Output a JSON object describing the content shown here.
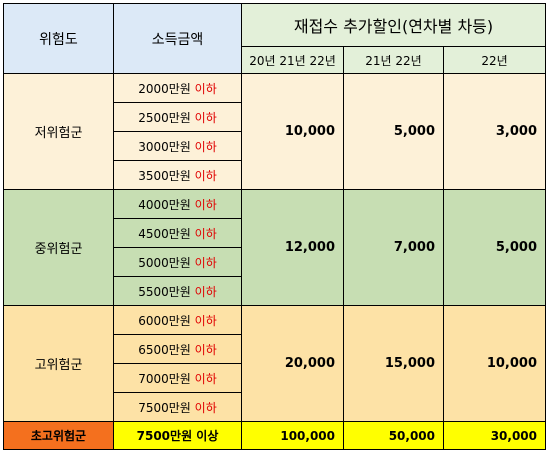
{
  "header": {
    "risk": "위험도",
    "income": "소득금액",
    "discount": "재접수 추가할인(연차별 차등)",
    "sub_cols": [
      "20년 21년 22년",
      "21년 22년",
      "22년"
    ]
  },
  "groups": [
    {
      "name": "저위험군",
      "rows": [
        {
          "amount": "2000만원",
          "cond": "이하"
        },
        {
          "amount": "2500만원",
          "cond": "이하"
        },
        {
          "amount": "3000만원",
          "cond": "이하"
        },
        {
          "amount": "3500만원",
          "cond": "이하"
        }
      ],
      "values": [
        "10,000",
        "5,000",
        "3,000"
      ]
    },
    {
      "name": "중위험군",
      "rows": [
        {
          "amount": "4000만원",
          "cond": "이하"
        },
        {
          "amount": "4500만원",
          "cond": "이하"
        },
        {
          "amount": "5000만원",
          "cond": "이하"
        },
        {
          "amount": "5500만원",
          "cond": "이하"
        }
      ],
      "values": [
        "12,000",
        "7,000",
        "5,000"
      ]
    },
    {
      "name": "고위험군",
      "rows": [
        {
          "amount": "6000만원",
          "cond": "이하"
        },
        {
          "amount": "6500만원",
          "cond": "이하"
        },
        {
          "amount": "7000만원",
          "cond": "이하"
        },
        {
          "amount": "7500만원",
          "cond": "이하"
        }
      ],
      "values": [
        "20,000",
        "15,000",
        "10,000"
      ]
    }
  ],
  "very_high": {
    "name": "초고위험군",
    "amount": "7500만원 이상",
    "values": [
      "100,000",
      "50,000",
      "30,000"
    ]
  }
}
